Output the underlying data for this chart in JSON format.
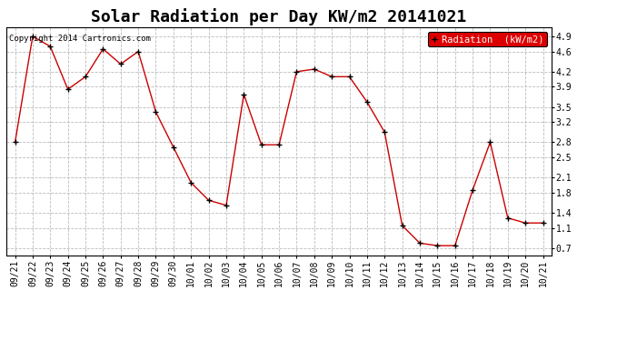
{
  "title": "Solar Radiation per Day KW/m2 20141021",
  "copyright_text": "Copyright 2014 Cartronics.com",
  "legend_label": "Radiation  (kW/m2)",
  "dates": [
    "09/21",
    "09/22",
    "09/23",
    "09/24",
    "09/25",
    "09/26",
    "09/27",
    "09/28",
    "09/29",
    "09/30",
    "10/01",
    "10/02",
    "10/03",
    "10/04",
    "10/05",
    "10/06",
    "10/07",
    "10/08",
    "10/09",
    "10/10",
    "10/11",
    "10/12",
    "10/13",
    "10/14",
    "10/15",
    "10/16",
    "10/17",
    "10/18",
    "10/19",
    "10/20",
    "10/21"
  ],
  "values": [
    2.8,
    4.9,
    4.7,
    3.85,
    4.1,
    4.65,
    4.35,
    4.6,
    3.4,
    2.7,
    2.0,
    1.65,
    1.55,
    3.75,
    2.75,
    2.75,
    4.2,
    4.25,
    4.1,
    4.1,
    3.6,
    3.0,
    1.15,
    0.8,
    0.75,
    0.75,
    1.85,
    2.8,
    1.3,
    1.2,
    1.2
  ],
  "line_color": "#cc0000",
  "marker_color": "#000000",
  "background_color": "#ffffff",
  "plot_bg_color": "#ffffff",
  "grid_color": "#bbbbbb",
  "ylim_min": 0.55,
  "ylim_max": 5.08,
  "yticks": [
    0.7,
    1.1,
    1.4,
    1.8,
    2.1,
    2.5,
    2.8,
    3.2,
    3.5,
    3.9,
    4.2,
    4.6,
    4.9
  ],
  "legend_bg": "#dd0000",
  "legend_text_color": "#ffffff",
  "title_fontsize": 13,
  "tick_fontsize": 7,
  "copyright_fontsize": 6.5,
  "legend_fontsize": 7.5
}
